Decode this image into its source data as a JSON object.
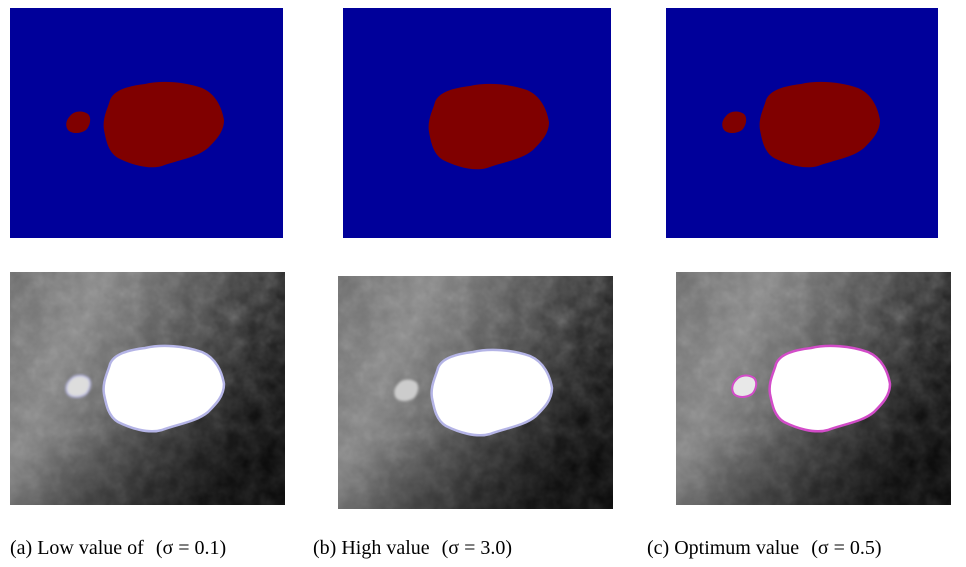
{
  "captions": [
    {
      "text": "(a) Low value of",
      "formula": "(σ = 0.1)"
    },
    {
      "text": "(b) High value",
      "formula": "(σ = 3.0)"
    },
    {
      "text": "(c) Optimum value",
      "formula": "(σ = 0.5)"
    }
  ]
}
